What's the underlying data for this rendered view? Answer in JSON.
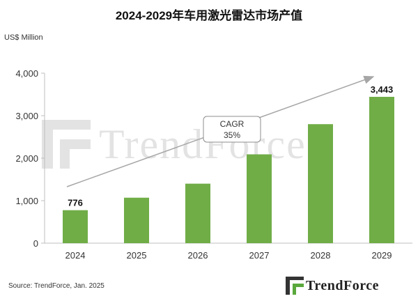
{
  "title": "2024-2029年车用激光雷达市场产值",
  "unit_label": "US$ Million",
  "source": "Source: TrendForce, Jan. 2025",
  "logo_text": "TrendForce",
  "watermark_text": "TrendForce",
  "colors": {
    "bar": "#70ad47",
    "arrow": "#a6a6a6",
    "logo_green": "#5aa83c",
    "logo_dark": "#333333"
  },
  "chart_data": {
    "type": "bar",
    "title": "2024-2029年车用激光雷达市场产值",
    "ylabel": "US$ Million",
    "categories": [
      "2024",
      "2025",
      "2026",
      "2027",
      "2028",
      "2029"
    ],
    "values": [
      776,
      1070,
      1400,
      2090,
      2800,
      3443
    ],
    "data_labels": {
      "2024": "776",
      "2029": "3,443"
    },
    "ylim": [
      0,
      4000
    ],
    "yticks": [
      0,
      1000,
      2000,
      3000,
      4000
    ],
    "ytick_labels": [
      "0",
      "1,000",
      "2,000",
      "3,000",
      "4,000"
    ],
    "grid": false,
    "annotation": {
      "line1": "CAGR",
      "line2": "35%"
    }
  }
}
